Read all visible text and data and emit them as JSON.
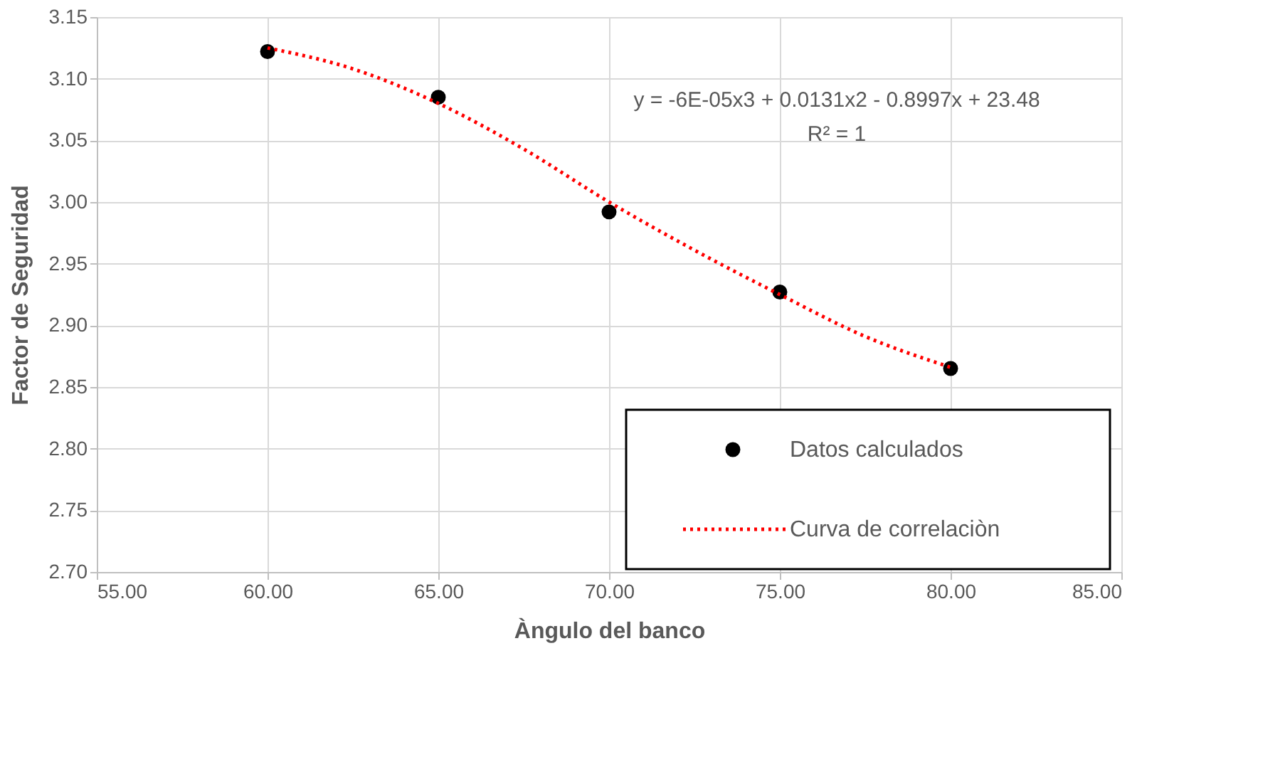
{
  "chart_data": {
    "type": "scatter",
    "xlabel": "Àngulo del banco",
    "ylabel": "Factor de Seguridad",
    "xlim": [
      55,
      85
    ],
    "xticks": [
      {
        "value": 55,
        "label": "55.00"
      },
      {
        "value": 60,
        "label": "60.00"
      },
      {
        "value": 65,
        "label": "65.00"
      },
      {
        "value": 70,
        "label": "70.00"
      },
      {
        "value": 75,
        "label": "75.00"
      },
      {
        "value": 80,
        "label": "80.00"
      },
      {
        "value": 85,
        "label": "85.00"
      }
    ],
    "ylim": [
      2.7,
      3.15
    ],
    "yticks": [
      {
        "value": 2.7,
        "label": "2.70"
      },
      {
        "value": 2.75,
        "label": "2.75"
      },
      {
        "value": 2.8,
        "label": "2.80"
      },
      {
        "value": 2.85,
        "label": "2.85"
      },
      {
        "value": 2.9,
        "label": "2.90"
      },
      {
        "value": 2.95,
        "label": "2.95"
      },
      {
        "value": 3.0,
        "label": "3.00"
      },
      {
        "value": 3.05,
        "label": "3.05"
      },
      {
        "value": 3.1,
        "label": "3.10"
      },
      {
        "value": 3.15,
        "label": "3.15"
      }
    ],
    "grid": true,
    "legend": "bottom right",
    "annotations": [
      "y = -6E-05x3 + 0.0131x2 - 0.8997x + 23.48",
      "R² = 1"
    ],
    "series": [
      {
        "name": "Datos calculados",
        "color": "#000000",
        "marker": "circle",
        "x": [
          60,
          65,
          70,
          75,
          80
        ],
        "values": [
          3.122,
          3.085,
          2.992,
          2.927,
          2.865
        ]
      },
      {
        "name": "Curva de correlaciòn",
        "type": "line",
        "color": "#ff0000",
        "line_style": "dotted",
        "marker": "none",
        "x": [
          60,
          62.5,
          65,
          67.5,
          70,
          72.5,
          75,
          77.5,
          80
        ],
        "values": [
          3.125,
          3.108,
          3.08,
          3.043,
          3.0,
          2.961,
          2.925,
          2.891,
          2.866
        ]
      }
    ]
  }
}
